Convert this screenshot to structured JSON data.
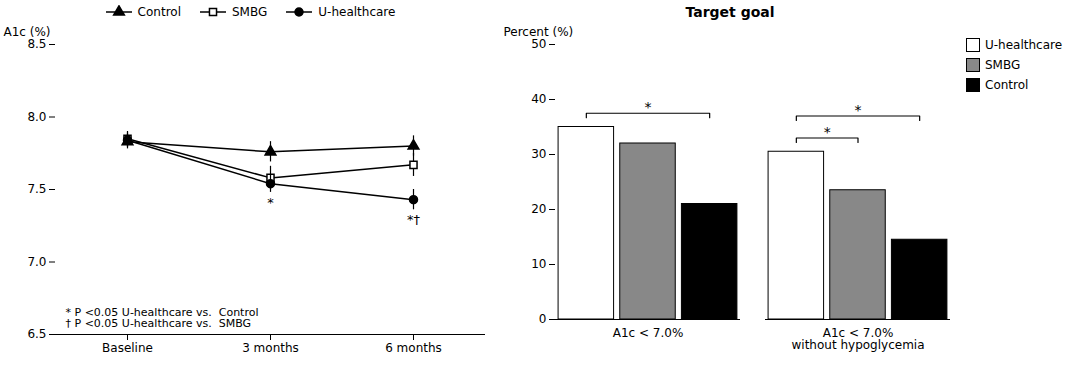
{
  "chart_data": [
    {
      "type": "line",
      "ylabel": "A1c (%)",
      "categories": [
        "Baseline",
        "3 months",
        "6 months"
      ],
      "ylim": [
        6.5,
        8.5
      ],
      "yticks": [
        6.5,
        {
          "value": 7,
          "label": "7.0"
        },
        7.5,
        {
          "value": 8,
          "label": "8.0"
        },
        8.5
      ],
      "series": [
        {
          "name": "Control",
          "color": "black",
          "marker": "triangle",
          "values": [
            7.83,
            7.76,
            7.8
          ],
          "errors": [
            0.05,
            0.07,
            0.07
          ]
        },
        {
          "name": "SMBG",
          "color": "black",
          "marker": "square-open",
          "values": [
            7.85,
            7.58,
            7.67
          ],
          "errors": [
            0.05,
            0.08,
            0.08
          ]
        },
        {
          "name": "U-healthcare",
          "color": "black",
          "marker": "circle",
          "values": [
            7.84,
            7.54,
            7.43
          ],
          "errors": [
            0.05,
            0.06,
            0.07
          ]
        }
      ],
      "annotations": [
        {
          "text": "*",
          "category": "3 months"
        },
        {
          "text": "*†",
          "category": "6 months"
        }
      ],
      "notes": [
        "* P <0.05 U-healthcare vs.  Control",
        "† P <0.05 U-healthcare vs.  SMBG"
      ],
      "legend": "top"
    },
    {
      "type": "bar",
      "title": "Target goal",
      "ylabel": "Percent (%)",
      "categories": [
        "A1c < 7.0%",
        "A1c < 7.0%\nwithout hypoglycemia"
      ],
      "ylim": [
        0,
        50
      ],
      "yticks": [
        0,
        10,
        20,
        30,
        40,
        50
      ],
      "series": [
        {
          "name": "U-healthcare",
          "color": "white",
          "values": [
            35,
            30.5
          ]
        },
        {
          "name": "SMBG",
          "color": "#888888",
          "values": [
            32,
            23.5
          ]
        },
        {
          "name": "Control",
          "color": "black",
          "values": [
            21,
            14.5
          ]
        }
      ],
      "annotations": [
        {
          "text": "*",
          "category": "A1c < 7.0%",
          "between": [
            "U-healthcare",
            "Control"
          ]
        },
        {
          "text": "*",
          "category": "A1c < 7.0%\nwithout hypoglycemia",
          "between": [
            "U-healthcare",
            "SMBG"
          ]
        },
        {
          "text": "*",
          "category": "A1c < 7.0%\nwithout hypoglycemia",
          "between": [
            "U-healthcare",
            "Control"
          ]
        }
      ],
      "legend": "right"
    }
  ]
}
